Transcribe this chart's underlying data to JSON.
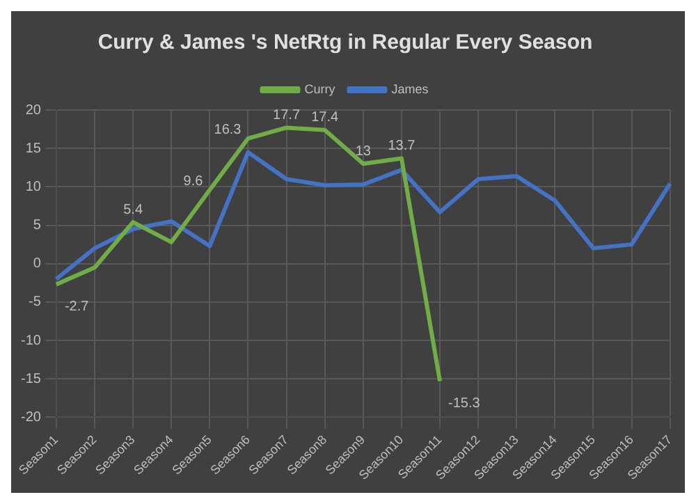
{
  "chart_data": {
    "type": "line",
    "title": "Curry & James 's NetRtg in Regular Every Season",
    "categories": [
      "Season1",
      "Season2",
      "Season3",
      "Season4",
      "Season5",
      "Season6",
      "Season7",
      "Season8",
      "Season9",
      "Season10",
      "Season11",
      "Season12",
      "Season13",
      "Season14",
      "Season15",
      "Season16",
      "Season17"
    ],
    "series": [
      {
        "name": "Curry",
        "color": "#70ad47",
        "values": [
          -2.7,
          -0.5,
          5.4,
          2.8,
          9.6,
          16.3,
          17.7,
          17.4,
          13,
          13.7,
          -15.3,
          null,
          null,
          null,
          null,
          null,
          null
        ],
        "value_labels": [
          "-2.7",
          null,
          "5.4",
          null,
          "9.6",
          "16.3",
          "17.7",
          "17.4",
          "13",
          "13.7",
          "-15.3",
          null,
          null,
          null,
          null,
          null,
          null
        ]
      },
      {
        "name": "James",
        "color": "#4472c4",
        "values": [
          -2,
          2,
          4.5,
          5.5,
          2.3,
          14.5,
          11,
          10.2,
          10.3,
          12.2,
          6.7,
          11,
          11.4,
          8.2,
          2,
          2.5,
          10.4
        ]
      }
    ],
    "ylim": [
      -20,
      20
    ],
    "yticks": [
      -20,
      -15,
      -10,
      -5,
      0,
      5,
      10,
      15,
      20
    ],
    "grid": true,
    "legend": "top",
    "marker": "none",
    "line_style": "solid"
  }
}
